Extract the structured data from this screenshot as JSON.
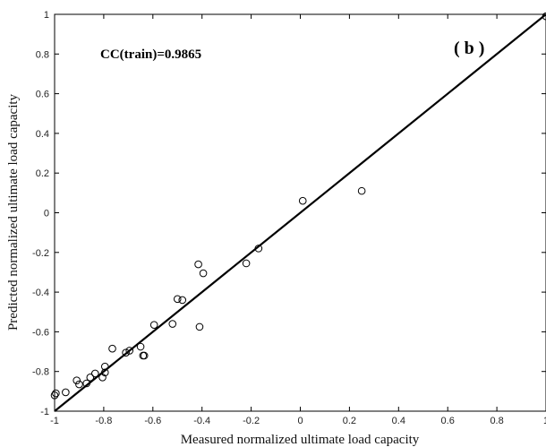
{
  "chart_data": {
    "type": "scatter",
    "xlabel": "Measured normalized ultimate load capacity",
    "ylabel": "Predicted normalized ultimate load capacity",
    "xlim": [
      -1,
      1
    ],
    "ylim": [
      -1,
      1
    ],
    "xticks": [
      "-1",
      "-0.8",
      "-0.6",
      "-0.4",
      "-0.2",
      "0",
      "0.2",
      "0.4",
      "0.6",
      "0.8",
      "1"
    ],
    "yticks": [
      "-1",
      "-0.8",
      "-0.6",
      "-0.4",
      "-0.2",
      "0",
      "0.2",
      "0.4",
      "0.6",
      "0.8",
      "1"
    ],
    "grid": false,
    "annotation": "CC(train)=0.9865",
    "panel_label": "( b )",
    "reference_line": {
      "x": [
        -1,
        1
      ],
      "y": [
        -1,
        1
      ]
    },
    "points": [
      {
        "x": -1.0,
        "y": -0.92
      },
      {
        "x": -0.995,
        "y": -0.91
      },
      {
        "x": -0.955,
        "y": -0.905
      },
      {
        "x": -0.91,
        "y": -0.845
      },
      {
        "x": -0.9,
        "y": -0.865
      },
      {
        "x": -0.87,
        "y": -0.86
      },
      {
        "x": -0.855,
        "y": -0.83
      },
      {
        "x": -0.835,
        "y": -0.81
      },
      {
        "x": -0.805,
        "y": -0.83
      },
      {
        "x": -0.795,
        "y": -0.805
      },
      {
        "x": -0.795,
        "y": -0.775
      },
      {
        "x": -0.765,
        "y": -0.685
      },
      {
        "x": -0.71,
        "y": -0.705
      },
      {
        "x": -0.695,
        "y": -0.695
      },
      {
        "x": -0.65,
        "y": -0.675
      },
      {
        "x": -0.64,
        "y": -0.72
      },
      {
        "x": -0.635,
        "y": -0.72
      },
      {
        "x": -0.595,
        "y": -0.565
      },
      {
        "x": -0.52,
        "y": -0.56
      },
      {
        "x": -0.5,
        "y": -0.435
      },
      {
        "x": -0.48,
        "y": -0.44
      },
      {
        "x": -0.415,
        "y": -0.26
      },
      {
        "x": -0.41,
        "y": -0.575
      },
      {
        "x": -0.395,
        "y": -0.305
      },
      {
        "x": -0.22,
        "y": -0.255
      },
      {
        "x": -0.17,
        "y": -0.18
      },
      {
        "x": 0.01,
        "y": 0.06
      },
      {
        "x": 0.25,
        "y": 0.11
      },
      {
        "x": 1.0,
        "y": 0.99
      }
    ]
  }
}
